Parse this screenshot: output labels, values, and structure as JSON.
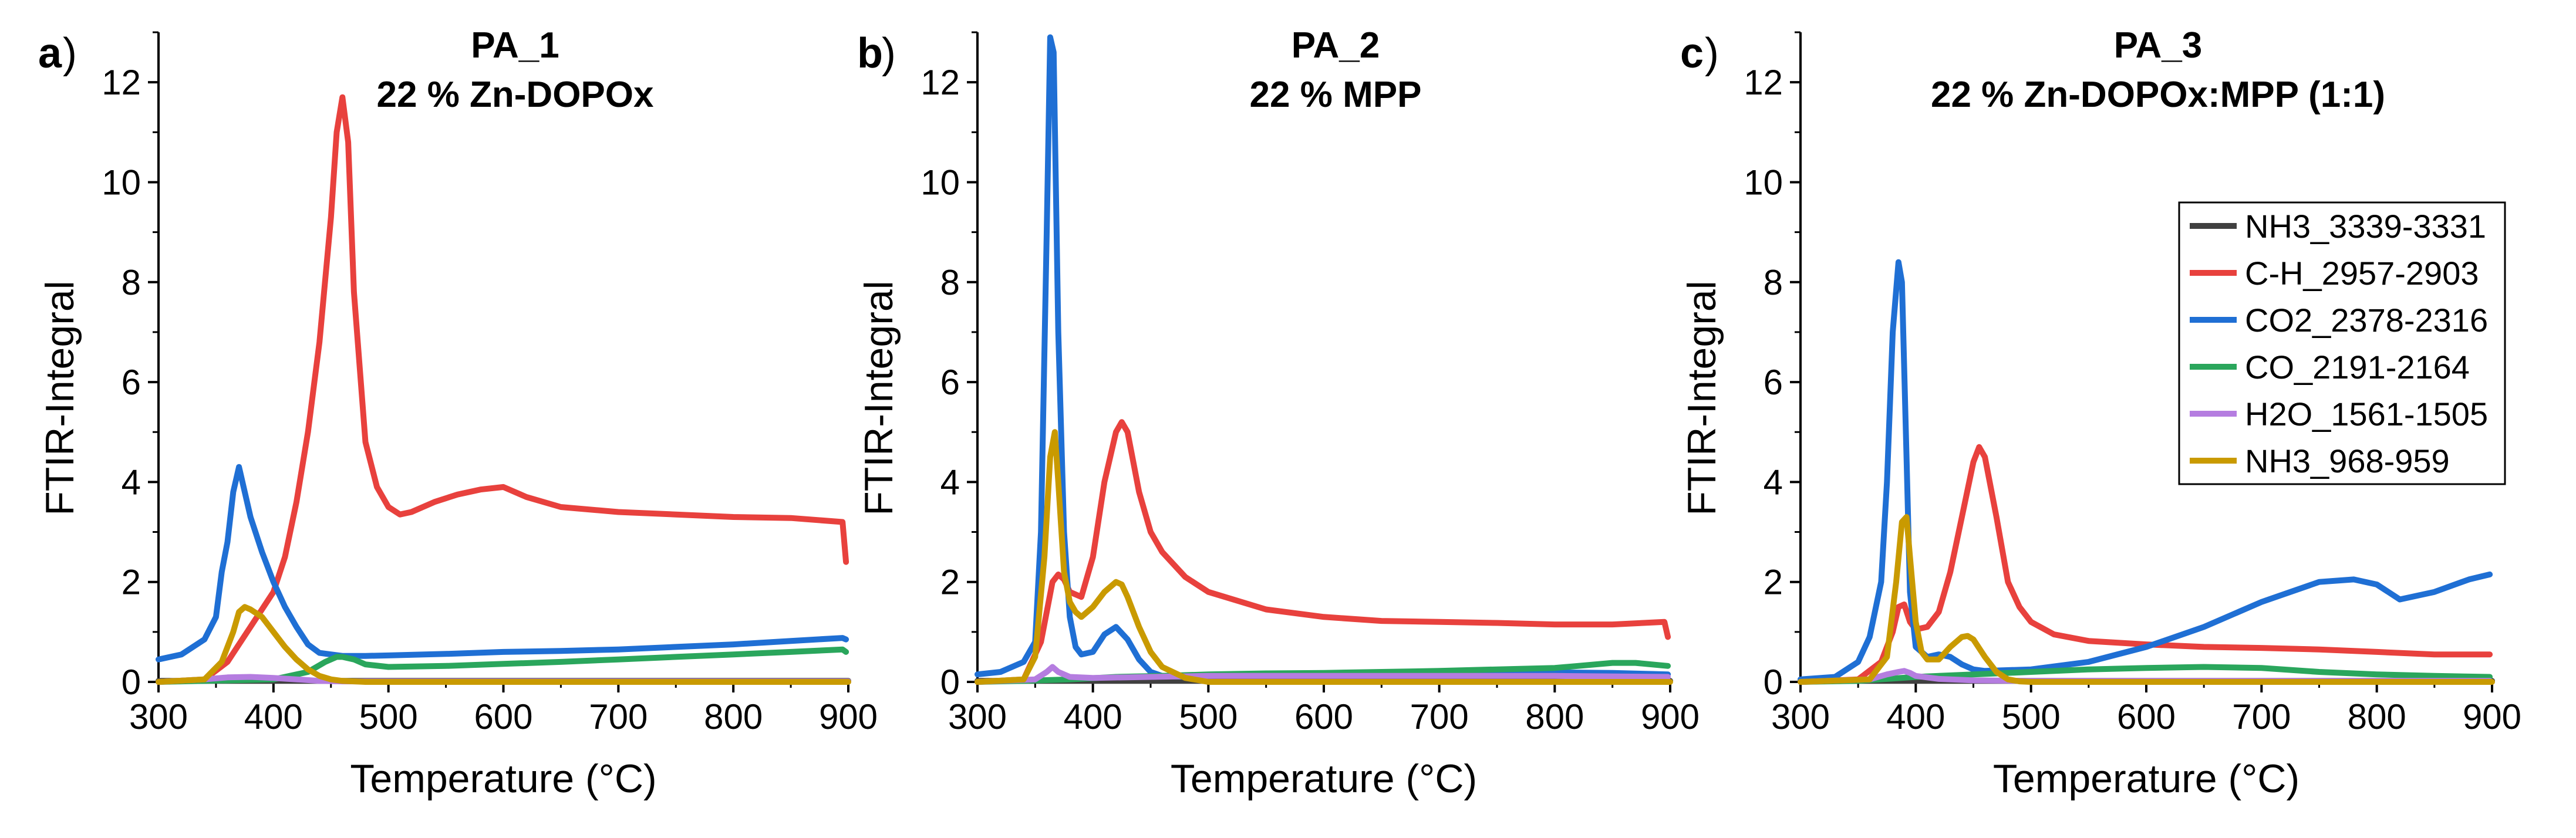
{
  "chart_data": [
    {
      "type": "line",
      "panel_label": "a",
      "title": "PA_1",
      "subtitle": "22 % Zn-DOPOx",
      "xlabel": "Temperature (°C)",
      "ylabel": "FTIR-Integral",
      "xlim": [
        300,
        900
      ],
      "ylim": [
        0,
        13
      ],
      "xticks": [
        "300",
        "400",
        "500",
        "600",
        "700",
        "800",
        "900"
      ],
      "yticks": [
        "0",
        "2",
        "4",
        "6",
        "8",
        "10",
        "12"
      ],
      "series": [
        {
          "name": "NH3_3339-3331",
          "color": "#404040",
          "x": [
            300,
            900
          ],
          "y": [
            0.02,
            0.02
          ]
        },
        {
          "name": "C-H_2957-2903",
          "color": "#e8413d",
          "x": [
            300,
            340,
            360,
            380,
            400,
            410,
            420,
            430,
            440,
            450,
            455,
            460,
            465,
            470,
            480,
            490,
            500,
            510,
            520,
            540,
            560,
            580,
            600,
            620,
            650,
            700,
            750,
            800,
            850,
            895,
            898
          ],
          "y": [
            0,
            0.05,
            0.4,
            1.1,
            1.8,
            2.5,
            3.6,
            5.0,
            6.8,
            9.3,
            11.0,
            11.7,
            10.8,
            7.8,
            4.8,
            3.9,
            3.5,
            3.35,
            3.4,
            3.6,
            3.75,
            3.85,
            3.9,
            3.7,
            3.5,
            3.4,
            3.35,
            3.3,
            3.28,
            3.2,
            2.4
          ]
        },
        {
          "name": "CO2_2378-2316",
          "color": "#1f6fd4",
          "x": [
            300,
            320,
            340,
            350,
            355,
            360,
            365,
            370,
            375,
            380,
            390,
            400,
            410,
            420,
            430,
            440,
            450,
            460,
            480,
            500,
            550,
            600,
            650,
            700,
            750,
            800,
            850,
            895,
            898
          ],
          "y": [
            0.45,
            0.55,
            0.85,
            1.3,
            2.2,
            2.8,
            3.8,
            4.3,
            3.8,
            3.3,
            2.6,
            2.0,
            1.5,
            1.1,
            0.75,
            0.58,
            0.55,
            0.52,
            0.52,
            0.53,
            0.56,
            0.6,
            0.62,
            0.65,
            0.7,
            0.75,
            0.82,
            0.88,
            0.85
          ]
        },
        {
          "name": "CO_2191-2164",
          "color": "#2aa65c",
          "x": [
            300,
            340,
            400,
            430,
            445,
            455,
            460,
            470,
            480,
            500,
            550,
            600,
            650,
            700,
            750,
            800,
            850,
            895,
            898
          ],
          "y": [
            0,
            0.02,
            0.05,
            0.2,
            0.4,
            0.5,
            0.5,
            0.45,
            0.35,
            0.3,
            0.32,
            0.36,
            0.4,
            0.45,
            0.5,
            0.55,
            0.6,
            0.65,
            0.6
          ]
        },
        {
          "name": "H2O_1561-1505",
          "color": "#b57de0",
          "x": [
            300,
            340,
            360,
            380,
            400,
            420,
            440,
            460,
            900
          ],
          "y": [
            0,
            0.05,
            0.09,
            0.1,
            0.08,
            0.05,
            0.02,
            0.01,
            0.01
          ]
        },
        {
          "name": "NH3_968-959",
          "color": "#c99a00",
          "x": [
            300,
            340,
            355,
            365,
            370,
            375,
            380,
            390,
            400,
            410,
            420,
            430,
            440,
            450,
            460,
            480,
            900
          ],
          "y": [
            0,
            0.05,
            0.4,
            1.0,
            1.4,
            1.5,
            1.45,
            1.3,
            1.0,
            0.7,
            0.45,
            0.25,
            0.12,
            0.05,
            0.02,
            0.0,
            0.0
          ]
        }
      ]
    },
    {
      "type": "line",
      "panel_label": "b",
      "title": "PA_2",
      "subtitle": "22 % MPP",
      "xlabel": "Temperature (°C)",
      "ylabel": "FTIR-Integral",
      "xlim": [
        300,
        900
      ],
      "ylim": [
        0,
        13
      ],
      "xticks": [
        "300",
        "400",
        "500",
        "600",
        "700",
        "800",
        "900"
      ],
      "yticks": [
        "0",
        "2",
        "4",
        "6",
        "8",
        "10",
        "12"
      ],
      "series": [
        {
          "name": "NH3_3339-3331",
          "color": "#404040",
          "x": [
            300,
            900
          ],
          "y": [
            0.02,
            0.02
          ]
        },
        {
          "name": "C-H_2957-2903",
          "color": "#e8413d",
          "x": [
            300,
            340,
            355,
            365,
            370,
            375,
            380,
            390,
            400,
            410,
            420,
            425,
            430,
            440,
            450,
            460,
            480,
            500,
            550,
            600,
            650,
            700,
            750,
            800,
            850,
            895,
            898
          ],
          "y": [
            0,
            0.05,
            0.8,
            2.0,
            2.15,
            2.05,
            1.8,
            1.7,
            2.5,
            4.0,
            5.0,
            5.2,
            5.0,
            3.8,
            3.0,
            2.6,
            2.1,
            1.8,
            1.45,
            1.3,
            1.22,
            1.2,
            1.18,
            1.15,
            1.15,
            1.2,
            0.9
          ]
        },
        {
          "name": "CO2_2378-2316",
          "color": "#1f6fd4",
          "x": [
            300,
            320,
            340,
            350,
            355,
            360,
            363,
            366,
            370,
            375,
            380,
            385,
            390,
            400,
            410,
            420,
            430,
            440,
            450,
            460,
            480,
            500,
            550,
            600,
            650,
            700,
            750,
            800,
            850,
            898
          ],
          "y": [
            0.15,
            0.2,
            0.4,
            0.8,
            3.0,
            9.0,
            12.9,
            12.6,
            7.0,
            3.0,
            1.3,
            0.7,
            0.55,
            0.6,
            0.95,
            1.1,
            0.85,
            0.45,
            0.2,
            0.12,
            0.1,
            0.12,
            0.14,
            0.15,
            0.16,
            0.17,
            0.18,
            0.19,
            0.18,
            0.15
          ]
        },
        {
          "name": "CO_2191-2164",
          "color": "#2aa65c",
          "x": [
            300,
            340,
            380,
            420,
            460,
            500,
            550,
            600,
            650,
            700,
            750,
            800,
            820,
            850,
            870,
            898
          ],
          "y": [
            0,
            0.02,
            0.05,
            0.1,
            0.12,
            0.15,
            0.17,
            0.18,
            0.2,
            0.22,
            0.25,
            0.28,
            0.32,
            0.38,
            0.38,
            0.32
          ]
        },
        {
          "name": "H2O_1561-1505",
          "color": "#b57de0",
          "x": [
            300,
            350,
            360,
            365,
            370,
            380,
            400,
            450,
            500,
            600,
            700,
            800,
            898
          ],
          "y": [
            0,
            0.05,
            0.2,
            0.3,
            0.2,
            0.1,
            0.08,
            0.1,
            0.12,
            0.12,
            0.12,
            0.12,
            0.1
          ]
        },
        {
          "name": "NH3_968-959",
          "color": "#c99a00",
          "x": [
            300,
            340,
            350,
            358,
            363,
            367,
            370,
            375,
            380,
            385,
            390,
            400,
            410,
            420,
            425,
            430,
            440,
            450,
            460,
            480,
            500,
            900
          ],
          "y": [
            0,
            0.05,
            0.5,
            2.5,
            4.5,
            5.0,
            4.0,
            2.2,
            1.6,
            1.4,
            1.3,
            1.5,
            1.8,
            2.0,
            1.95,
            1.7,
            1.1,
            0.6,
            0.3,
            0.08,
            0.0,
            0.0
          ]
        }
      ]
    },
    {
      "type": "line",
      "panel_label": "c",
      "title": "PA_3",
      "subtitle": "22 % Zn-DOPOx:MPP (1:1)",
      "xlabel": "Temperature (°C)",
      "ylabel": "FTIR-Integral",
      "xlim": [
        300,
        900
      ],
      "ylim": [
        0,
        13
      ],
      "xticks": [
        "300",
        "400",
        "500",
        "600",
        "700",
        "800",
        "900"
      ],
      "yticks": [
        "0",
        "2",
        "4",
        "6",
        "8",
        "10",
        "12"
      ],
      "series": [
        {
          "name": "NH3_3339-3331",
          "color": "#404040",
          "x": [
            300,
            900
          ],
          "y": [
            0.02,
            0.02
          ]
        },
        {
          "name": "C-H_2957-2903",
          "color": "#e8413d",
          "x": [
            300,
            350,
            370,
            380,
            385,
            390,
            395,
            400,
            410,
            420,
            430,
            440,
            450,
            455,
            460,
            470,
            480,
            490,
            500,
            520,
            550,
            600,
            650,
            700,
            750,
            800,
            850,
            898
          ],
          "y": [
            0,
            0.05,
            0.4,
            1.0,
            1.5,
            1.55,
            1.2,
            1.05,
            1.1,
            1.4,
            2.2,
            3.3,
            4.4,
            4.7,
            4.5,
            3.3,
            2.0,
            1.5,
            1.2,
            0.95,
            0.82,
            0.75,
            0.7,
            0.68,
            0.65,
            0.6,
            0.55,
            0.55
          ]
        },
        {
          "name": "CO2_2378-2316",
          "color": "#1f6fd4",
          "x": [
            300,
            330,
            350,
            360,
            370,
            375,
            380,
            385,
            388,
            392,
            395,
            400,
            410,
            420,
            430,
            440,
            450,
            460,
            500,
            550,
            600,
            650,
            700,
            750,
            780,
            800,
            820,
            850,
            880,
            898
          ],
          "y": [
            0.05,
            0.1,
            0.4,
            0.9,
            2.0,
            4.0,
            7.0,
            8.4,
            8.0,
            4.5,
            1.8,
            0.7,
            0.5,
            0.55,
            0.5,
            0.35,
            0.25,
            0.22,
            0.25,
            0.4,
            0.7,
            1.1,
            1.6,
            2.0,
            2.05,
            1.95,
            1.65,
            1.8,
            2.05,
            2.15
          ]
        },
        {
          "name": "CO_2191-2164",
          "color": "#2aa65c",
          "x": [
            300,
            350,
            400,
            450,
            500,
            550,
            600,
            650,
            700,
            750,
            800,
            850,
            898
          ],
          "y": [
            0,
            0.02,
            0.1,
            0.15,
            0.2,
            0.25,
            0.28,
            0.3,
            0.28,
            0.2,
            0.15,
            0.12,
            0.1
          ]
        },
        {
          "name": "H2O_1561-1505",
          "color": "#b57de0",
          "x": [
            300,
            360,
            375,
            385,
            390,
            395,
            400,
            420,
            450,
            500,
            600,
            700,
            800,
            898
          ],
          "y": [
            0,
            0.05,
            0.15,
            0.2,
            0.22,
            0.18,
            0.12,
            0.06,
            0.03,
            0.02,
            0.02,
            0.02,
            0.02,
            0.02
          ]
        },
        {
          "name": "NH3_968-959",
          "color": "#c99a00",
          "x": [
            300,
            360,
            375,
            383,
            388,
            392,
            395,
            400,
            405,
            410,
            420,
            430,
            440,
            445,
            450,
            460,
            470,
            480,
            490,
            500,
            900
          ],
          "y": [
            0,
            0.05,
            0.5,
            2.0,
            3.2,
            3.3,
            2.5,
            1.2,
            0.6,
            0.45,
            0.45,
            0.7,
            0.9,
            0.92,
            0.85,
            0.5,
            0.2,
            0.05,
            0.01,
            0.0,
            0.0
          ]
        }
      ]
    }
  ],
  "legend": {
    "placement": "right-center of panel c",
    "entries": [
      {
        "name": "NH3_3339-3331",
        "color": "#404040"
      },
      {
        "name": "C-H_2957-2903",
        "color": "#e8413d"
      },
      {
        "name": "CO2_2378-2316",
        "color": "#1f6fd4"
      },
      {
        "name": "CO_2191-2164",
        "color": "#2aa65c"
      },
      {
        "name": "H2O_1561-1505",
        "color": "#b57de0"
      },
      {
        "name": "NH3_968-959",
        "color": "#c99a00"
      }
    ]
  }
}
